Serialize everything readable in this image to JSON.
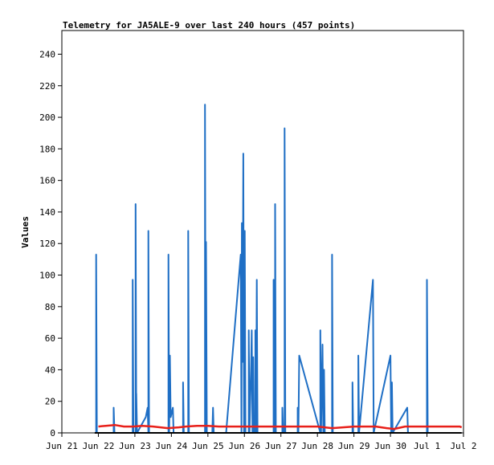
{
  "chart_data": {
    "type": "line",
    "title": "Telemetry for JA5ALE-9 over last 240 hours (457 points)",
    "xlabel": "",
    "ylabel": "Values",
    "x_ticks": [
      "Jun 21",
      "Jun 22",
      "Jun 23",
      "Jun 24",
      "Jun 25",
      "Jun 26",
      "Jun 27",
      "Jun 28",
      "Jun 29",
      "Jun 30",
      "Jul 1",
      "Jul 2"
    ],
    "xlim_days": [
      21,
      32
    ],
    "ylim": [
      0,
      255
    ],
    "y_ticks": [
      0,
      20,
      40,
      60,
      80,
      100,
      120,
      140,
      160,
      180,
      200,
      220,
      240
    ],
    "grid": false,
    "legend": "none",
    "colors": {
      "blue": "#1f6fc5",
      "red": "#e8201a",
      "black": "#000000"
    },
    "series": [
      {
        "color": "blue",
        "points": [
          [
            21.94,
            0
          ],
          [
            21.94,
            113
          ],
          [
            21.96,
            0
          ],
          [
            22.42,
            0
          ],
          [
            22.42,
            16
          ],
          [
            22.44,
            0
          ],
          [
            22.94,
            0
          ],
          [
            22.94,
            97
          ],
          [
            22.96,
            0
          ],
          [
            23.02,
            0
          ],
          [
            23.02,
            145
          ],
          [
            23.04,
            0
          ],
          [
            23.04,
            25
          ],
          [
            23.06,
            0
          ],
          [
            23.3,
            10
          ],
          [
            23.35,
            16
          ],
          [
            23.37,
            0
          ],
          [
            23.37,
            128
          ],
          [
            23.39,
            0
          ],
          [
            23.92,
            0
          ],
          [
            23.92,
            113
          ],
          [
            23.94,
            0
          ],
          [
            23.96,
            49
          ],
          [
            23.98,
            10
          ],
          [
            24.04,
            16
          ],
          [
            24.06,
            0
          ],
          [
            24.32,
            0
          ],
          [
            24.32,
            32
          ],
          [
            24.34,
            0
          ],
          [
            24.46,
            0
          ],
          [
            24.46,
            128
          ],
          [
            24.48,
            0
          ],
          [
            24.92,
            0
          ],
          [
            24.92,
            208
          ],
          [
            24.94,
            0
          ],
          [
            24.95,
            121
          ],
          [
            24.97,
            0
          ],
          [
            25.12,
            0
          ],
          [
            25.14,
            16
          ],
          [
            25.16,
            0
          ],
          [
            25.5,
            0
          ],
          [
            25.9,
            113
          ],
          [
            25.92,
            0
          ],
          [
            25.93,
            133
          ],
          [
            25.95,
            45
          ],
          [
            25.97,
            177
          ],
          [
            25.99,
            0
          ],
          [
            26.01,
            128
          ],
          [
            26.03,
            0
          ],
          [
            26.12,
            0
          ],
          [
            26.12,
            65
          ],
          [
            26.14,
            0
          ],
          [
            26.18,
            40
          ],
          [
            26.2,
            65
          ],
          [
            26.22,
            0
          ],
          [
            26.24,
            48
          ],
          [
            26.26,
            0
          ],
          [
            26.3,
            0
          ],
          [
            26.3,
            65
          ],
          [
            26.32,
            0
          ],
          [
            26.34,
            97
          ],
          [
            26.36,
            0
          ],
          [
            26.8,
            0
          ],
          [
            26.8,
            97
          ],
          [
            26.82,
            0
          ],
          [
            26.84,
            0
          ],
          [
            26.84,
            145
          ],
          [
            26.86,
            0
          ],
          [
            27.04,
            0
          ],
          [
            27.04,
            16
          ],
          [
            27.06,
            0
          ],
          [
            27.1,
            0
          ],
          [
            27.1,
            193
          ],
          [
            27.12,
            0
          ],
          [
            27.46,
            0
          ],
          [
            27.46,
            16
          ],
          [
            27.48,
            0
          ],
          [
            27.5,
            49
          ],
          [
            28.08,
            0
          ],
          [
            28.08,
            65
          ],
          [
            28.1,
            0
          ],
          [
            28.14,
            56
          ],
          [
            28.16,
            0
          ],
          [
            28.18,
            40
          ],
          [
            28.2,
            0
          ],
          [
            28.4,
            0
          ],
          [
            28.4,
            113
          ],
          [
            28.42,
            0
          ],
          [
            28.96,
            0
          ],
          [
            28.96,
            32
          ],
          [
            28.98,
            0
          ],
          [
            29.12,
            0
          ],
          [
            29.12,
            49
          ],
          [
            29.14,
            0
          ],
          [
            29.52,
            97
          ],
          [
            29.54,
            0
          ],
          [
            30.0,
            49
          ],
          [
            30.02,
            0
          ],
          [
            30.04,
            32
          ],
          [
            30.06,
            0
          ],
          [
            30.46,
            16
          ],
          [
            30.48,
            0
          ],
          [
            31.0,
            0
          ],
          [
            31.0,
            97
          ],
          [
            31.02,
            0
          ]
        ]
      },
      {
        "color": "red",
        "points": [
          [
            22.0,
            4
          ],
          [
            22.2,
            4.5
          ],
          [
            22.45,
            5
          ],
          [
            22.7,
            4
          ],
          [
            22.95,
            4
          ],
          [
            23.2,
            4.5
          ],
          [
            23.5,
            4
          ],
          [
            23.9,
            3
          ],
          [
            24.2,
            3.5
          ],
          [
            24.4,
            4
          ],
          [
            24.7,
            4.5
          ],
          [
            25.0,
            4.5
          ],
          [
            25.3,
            4
          ],
          [
            25.6,
            4
          ],
          [
            25.9,
            4
          ],
          [
            26.2,
            4
          ],
          [
            26.5,
            4
          ],
          [
            26.8,
            4
          ],
          [
            27.1,
            4
          ],
          [
            27.4,
            4
          ],
          [
            27.7,
            4
          ],
          [
            28.0,
            4
          ],
          [
            28.4,
            3
          ],
          [
            28.7,
            3.5
          ],
          [
            29.0,
            4
          ],
          [
            29.3,
            4
          ],
          [
            29.6,
            4
          ],
          [
            29.9,
            3
          ],
          [
            30.1,
            2.5
          ],
          [
            30.4,
            4
          ],
          [
            30.7,
            4
          ],
          [
            31.0,
            4
          ],
          [
            31.3,
            4
          ],
          [
            31.6,
            4
          ],
          [
            31.9,
            4
          ],
          [
            31.95,
            3.5
          ]
        ]
      },
      {
        "color": "black",
        "points": [
          [
            21.9,
            0
          ],
          [
            31.95,
            0
          ]
        ]
      }
    ]
  }
}
